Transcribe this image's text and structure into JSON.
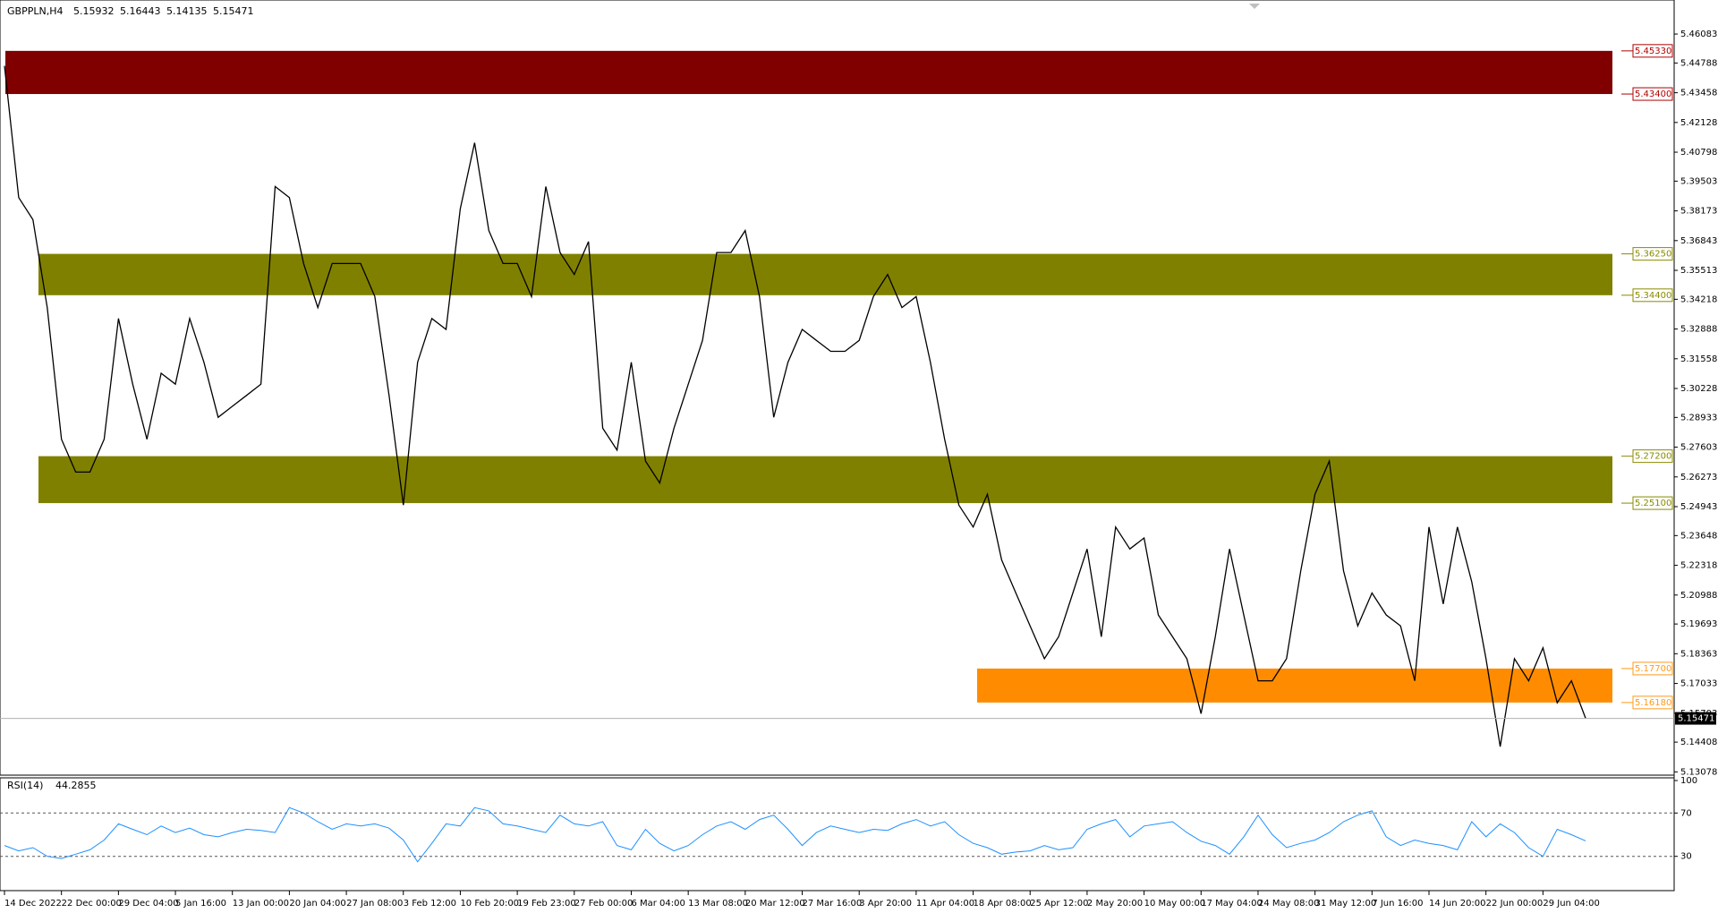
{
  "chart_data": [
    {
      "type": "line",
      "title": "GBPPLN,H4",
      "ohlc": [
        5.15932,
        5.16443,
        5.14135,
        5.15471
      ],
      "color": "#000000",
      "categories": [
        "14 Dec 2022",
        null,
        null,
        null,
        "22 Dec 00:00",
        null,
        null,
        null,
        "29 Dec 04:00",
        null,
        null,
        null,
        "5 Jan 16:00",
        null,
        null,
        null,
        "13 Jan 00:00",
        null,
        null,
        null,
        "20 Jan 04:00",
        null,
        null,
        null,
        "27 Jan 08:00",
        null,
        null,
        null,
        "3 Feb 12:00",
        null,
        null,
        null,
        "10 Feb 20:00",
        null,
        null,
        null,
        "19 Feb 23:00",
        null,
        null,
        null,
        "27 Feb 00:00",
        null,
        null,
        null,
        "6 Mar 04:00",
        null,
        null,
        null,
        "13 Mar 08:00",
        null,
        null,
        null,
        "20 Mar 12:00",
        null,
        null,
        null,
        "27 Mar 16:00",
        null,
        null,
        null,
        "3 Apr 20:00",
        null,
        null,
        null,
        "11 Apr 04:00",
        null,
        null,
        null,
        "18 Apr 08:00",
        null,
        null,
        null,
        "25 Apr 12:00",
        null,
        null,
        null,
        "2 May 20:00",
        null,
        null,
        null,
        "10 May 00:00",
        null,
        null,
        null,
        "17 May 04:00",
        null,
        null,
        null,
        "24 May 08:00",
        null,
        null,
        null,
        "31 May 12:00",
        null,
        null,
        null,
        "7 Jun 16:00",
        null,
        null,
        null,
        "14 Jun 20:00",
        null,
        null,
        null,
        "22 Jun 00:00",
        null,
        null,
        null,
        "29 Jun 04:00",
        null,
        null,
        null
      ],
      "values": [
        5.4466,
        5.3877,
        5.3778,
        5.3385,
        5.2796,
        5.2649,
        5.2649,
        5.2796,
        5.3336,
        5.3042,
        5.2796,
        5.3091,
        5.3042,
        5.3336,
        5.314,
        5.2894,
        5.2943,
        5.2992,
        5.3042,
        5.3926,
        5.3877,
        5.3582,
        5.3385,
        5.3582,
        5.3582,
        5.3582,
        5.3434,
        5.2992,
        5.2501,
        5.314,
        5.3336,
        5.3287,
        5.3827,
        5.4122,
        5.3729,
        5.3582,
        5.3582,
        5.3434,
        5.3926,
        5.3631,
        5.3533,
        5.368,
        5.2845,
        5.2747,
        5.314,
        5.2698,
        5.26,
        5.2845,
        5.3042,
        5.3238,
        5.3631,
        5.3631,
        5.3729,
        5.3434,
        5.2894,
        5.314,
        5.3287,
        5.3238,
        5.3189,
        5.3189,
        5.3238,
        5.3434,
        5.3533,
        5.3385,
        5.3434,
        5.314,
        5.2796,
        5.2501,
        5.2403,
        5.255,
        5.2256,
        5.2108,
        5.1961,
        5.1814,
        5.1912,
        5.2108,
        5.2305,
        5.1912,
        5.2403,
        5.2305,
        5.2354,
        5.201,
        5.1912,
        5.1814,
        5.1568,
        5.1912,
        5.2305,
        5.201,
        5.1715,
        5.1715,
        5.1814,
        5.2207,
        5.255,
        5.2698,
        5.2207,
        5.1961,
        5.2108,
        5.201,
        5.1961,
        5.1715,
        5.2403,
        5.2059,
        5.2403,
        5.2158,
        5.1814,
        5.1421,
        5.1814,
        5.1715,
        5.1863,
        5.1617,
        5.1715,
        5.15471
      ],
      "ylim": [
        5.12931,
        5.47606
      ],
      "yticks": [
        5.46083,
        5.44788,
        5.43458,
        5.42128,
        5.40798,
        5.39503,
        5.38173,
        5.36843,
        5.35513,
        5.34218,
        5.32888,
        5.31558,
        5.30228,
        5.28933,
        5.27603,
        5.26273,
        5.24943,
        5.23648,
        5.22318,
        5.20988,
        5.19693,
        5.18363,
        5.17033,
        5.15703,
        5.14408,
        5.13078
      ],
      "zones": [
        {
          "top": {
            "value": 5.4533,
            "label": "5.45330"
          },
          "bottom": {
            "value": 5.434,
            "label": "5.43400"
          },
          "color": "#800000",
          "label_color": "#b00000"
        },
        {
          "top": {
            "value": 5.3625,
            "label": "5.36250"
          },
          "bottom": {
            "value": 5.344,
            "label": "5.34400"
          },
          "color": "#808000",
          "label_color": "#8a8a00"
        },
        {
          "top": {
            "value": 5.272,
            "label": "5.27200"
          },
          "bottom": {
            "value": 5.251,
            "label": "5.25100"
          },
          "color": "#808000",
          "label_color": "#8a8a00"
        },
        {
          "top": {
            "value": 5.177,
            "label": "5.17700"
          },
          "bottom": {
            "value": 5.1618,
            "label": "5.16180"
          },
          "color": "#ff8c00",
          "label_color": "#ff9a1a"
        }
      ]
    },
    {
      "type": "line",
      "title": "RSI(14)",
      "color": "#1e90ff",
      "values": [
        40,
        35,
        38,
        30,
        28,
        32,
        36,
        45,
        60,
        55,
        50,
        58,
        52,
        56,
        50,
        48,
        52,
        55,
        54,
        52,
        75,
        70,
        62,
        55,
        60,
        58,
        60,
        56,
        45,
        25,
        42,
        60,
        58,
        75,
        72,
        60,
        58,
        55,
        52,
        68,
        60,
        58,
        62,
        40,
        36,
        55,
        42,
        35,
        40,
        50,
        58,
        62,
        55,
        64,
        68,
        55,
        40,
        52,
        58,
        55,
        52,
        55,
        54,
        60,
        64,
        58,
        62,
        50,
        42,
        38,
        32,
        34,
        35,
        40,
        36,
        38,
        55,
        60,
        64,
        48,
        58,
        60,
        62,
        52,
        44,
        40,
        32,
        48,
        68,
        50,
        38,
        42,
        45,
        52,
        62,
        68,
        72,
        48,
        40,
        45,
        42,
        40,
        36,
        62,
        48,
        60,
        52,
        38,
        30,
        55,
        50,
        44.2855
      ],
      "ylim": [
        0,
        100
      ],
      "yticks": [
        100,
        70,
        30
      ],
      "levels": [
        70,
        30
      ]
    }
  ]
}
